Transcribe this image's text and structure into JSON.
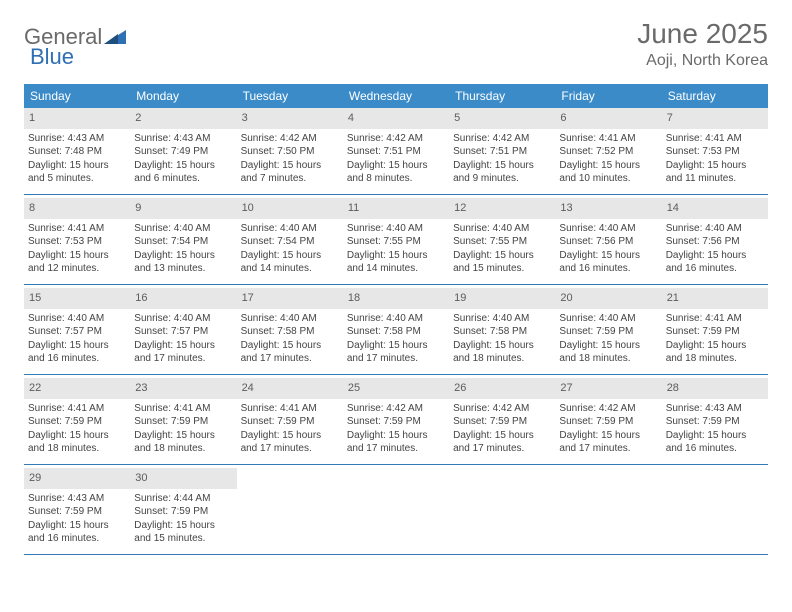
{
  "logo": {
    "word1": "General",
    "word2": "Blue"
  },
  "title": "June 2025",
  "subtitle": "Aoji, North Korea",
  "colors": {
    "header_bg": "#3b8bc9",
    "header_text": "#ffffff",
    "rule": "#347bb6",
    "daynum_bg": "#e7e7e7",
    "text_gray": "#6a6a6a"
  },
  "days_of_week": [
    "Sunday",
    "Monday",
    "Tuesday",
    "Wednesday",
    "Thursday",
    "Friday",
    "Saturday"
  ],
  "weeks": [
    [
      {
        "n": "1",
        "sr": "Sunrise: 4:43 AM",
        "ss": "Sunset: 7:48 PM",
        "d1": "Daylight: 15 hours",
        "d2": "and 5 minutes."
      },
      {
        "n": "2",
        "sr": "Sunrise: 4:43 AM",
        "ss": "Sunset: 7:49 PM",
        "d1": "Daylight: 15 hours",
        "d2": "and 6 minutes."
      },
      {
        "n": "3",
        "sr": "Sunrise: 4:42 AM",
        "ss": "Sunset: 7:50 PM",
        "d1": "Daylight: 15 hours",
        "d2": "and 7 minutes."
      },
      {
        "n": "4",
        "sr": "Sunrise: 4:42 AM",
        "ss": "Sunset: 7:51 PM",
        "d1": "Daylight: 15 hours",
        "d2": "and 8 minutes."
      },
      {
        "n": "5",
        "sr": "Sunrise: 4:42 AM",
        "ss": "Sunset: 7:51 PM",
        "d1": "Daylight: 15 hours",
        "d2": "and 9 minutes."
      },
      {
        "n": "6",
        "sr": "Sunrise: 4:41 AM",
        "ss": "Sunset: 7:52 PM",
        "d1": "Daylight: 15 hours",
        "d2": "and 10 minutes."
      },
      {
        "n": "7",
        "sr": "Sunrise: 4:41 AM",
        "ss": "Sunset: 7:53 PM",
        "d1": "Daylight: 15 hours",
        "d2": "and 11 minutes."
      }
    ],
    [
      {
        "n": "8",
        "sr": "Sunrise: 4:41 AM",
        "ss": "Sunset: 7:53 PM",
        "d1": "Daylight: 15 hours",
        "d2": "and 12 minutes."
      },
      {
        "n": "9",
        "sr": "Sunrise: 4:40 AM",
        "ss": "Sunset: 7:54 PM",
        "d1": "Daylight: 15 hours",
        "d2": "and 13 minutes."
      },
      {
        "n": "10",
        "sr": "Sunrise: 4:40 AM",
        "ss": "Sunset: 7:54 PM",
        "d1": "Daylight: 15 hours",
        "d2": "and 14 minutes."
      },
      {
        "n": "11",
        "sr": "Sunrise: 4:40 AM",
        "ss": "Sunset: 7:55 PM",
        "d1": "Daylight: 15 hours",
        "d2": "and 14 minutes."
      },
      {
        "n": "12",
        "sr": "Sunrise: 4:40 AM",
        "ss": "Sunset: 7:55 PM",
        "d1": "Daylight: 15 hours",
        "d2": "and 15 minutes."
      },
      {
        "n": "13",
        "sr": "Sunrise: 4:40 AM",
        "ss": "Sunset: 7:56 PM",
        "d1": "Daylight: 15 hours",
        "d2": "and 16 minutes."
      },
      {
        "n": "14",
        "sr": "Sunrise: 4:40 AM",
        "ss": "Sunset: 7:56 PM",
        "d1": "Daylight: 15 hours",
        "d2": "and 16 minutes."
      }
    ],
    [
      {
        "n": "15",
        "sr": "Sunrise: 4:40 AM",
        "ss": "Sunset: 7:57 PM",
        "d1": "Daylight: 15 hours",
        "d2": "and 16 minutes."
      },
      {
        "n": "16",
        "sr": "Sunrise: 4:40 AM",
        "ss": "Sunset: 7:57 PM",
        "d1": "Daylight: 15 hours",
        "d2": "and 17 minutes."
      },
      {
        "n": "17",
        "sr": "Sunrise: 4:40 AM",
        "ss": "Sunset: 7:58 PM",
        "d1": "Daylight: 15 hours",
        "d2": "and 17 minutes."
      },
      {
        "n": "18",
        "sr": "Sunrise: 4:40 AM",
        "ss": "Sunset: 7:58 PM",
        "d1": "Daylight: 15 hours",
        "d2": "and 17 minutes."
      },
      {
        "n": "19",
        "sr": "Sunrise: 4:40 AM",
        "ss": "Sunset: 7:58 PM",
        "d1": "Daylight: 15 hours",
        "d2": "and 18 minutes."
      },
      {
        "n": "20",
        "sr": "Sunrise: 4:40 AM",
        "ss": "Sunset: 7:59 PM",
        "d1": "Daylight: 15 hours",
        "d2": "and 18 minutes."
      },
      {
        "n": "21",
        "sr": "Sunrise: 4:41 AM",
        "ss": "Sunset: 7:59 PM",
        "d1": "Daylight: 15 hours",
        "d2": "and 18 minutes."
      }
    ],
    [
      {
        "n": "22",
        "sr": "Sunrise: 4:41 AM",
        "ss": "Sunset: 7:59 PM",
        "d1": "Daylight: 15 hours",
        "d2": "and 18 minutes."
      },
      {
        "n": "23",
        "sr": "Sunrise: 4:41 AM",
        "ss": "Sunset: 7:59 PM",
        "d1": "Daylight: 15 hours",
        "d2": "and 18 minutes."
      },
      {
        "n": "24",
        "sr": "Sunrise: 4:41 AM",
        "ss": "Sunset: 7:59 PM",
        "d1": "Daylight: 15 hours",
        "d2": "and 17 minutes."
      },
      {
        "n": "25",
        "sr": "Sunrise: 4:42 AM",
        "ss": "Sunset: 7:59 PM",
        "d1": "Daylight: 15 hours",
        "d2": "and 17 minutes."
      },
      {
        "n": "26",
        "sr": "Sunrise: 4:42 AM",
        "ss": "Sunset: 7:59 PM",
        "d1": "Daylight: 15 hours",
        "d2": "and 17 minutes."
      },
      {
        "n": "27",
        "sr": "Sunrise: 4:42 AM",
        "ss": "Sunset: 7:59 PM",
        "d1": "Daylight: 15 hours",
        "d2": "and 17 minutes."
      },
      {
        "n": "28",
        "sr": "Sunrise: 4:43 AM",
        "ss": "Sunset: 7:59 PM",
        "d1": "Daylight: 15 hours",
        "d2": "and 16 minutes."
      }
    ],
    [
      {
        "n": "29",
        "sr": "Sunrise: 4:43 AM",
        "ss": "Sunset: 7:59 PM",
        "d1": "Daylight: 15 hours",
        "d2": "and 16 minutes."
      },
      {
        "n": "30",
        "sr": "Sunrise: 4:44 AM",
        "ss": "Sunset: 7:59 PM",
        "d1": "Daylight: 15 hours",
        "d2": "and 15 minutes."
      },
      {
        "empty": true
      },
      {
        "empty": true
      },
      {
        "empty": true
      },
      {
        "empty": true
      },
      {
        "empty": true
      }
    ]
  ]
}
